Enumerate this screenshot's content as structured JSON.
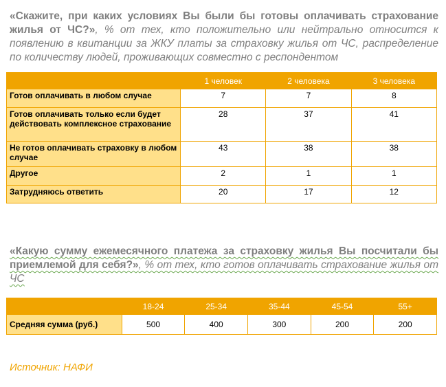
{
  "section1": {
    "question_bold": "«Скажите, при каких условиях Вы были бы готовы оплачивать страхование жилья от ЧС?»",
    "question_italic": ", % от тех, кто положительно или нейтрально относится к появлению в квитанции за ЖКУ платы за страховку жилья от ЧС, распределение по количеству людей, проживающих совместно с респондентом",
    "columns": [
      "1 человек",
      "2 человека",
      "3 человека"
    ],
    "rows": [
      {
        "label": "Готов оплачивать в любом случае",
        "values": [
          "7",
          "7",
          "8"
        ]
      },
      {
        "label": "Готов оплачивать только если будет действовать комплексное страхование",
        "values": [
          "28",
          "37",
          "41"
        ]
      },
      {
        "label": "Не готов оплачивать страховку в любом случае",
        "values": [
          "43",
          "38",
          "38"
        ]
      },
      {
        "label": "Другое",
        "values": [
          "2",
          "1",
          "1"
        ]
      },
      {
        "label": "Затрудняюсь ответить",
        "values": [
          "20",
          "17",
          "12"
        ]
      }
    ]
  },
  "section2": {
    "question_bold": "«Какую сумму ежемесячного платежа за страховку жилья Вы посчитали бы приемлемой для себя?»",
    "question_italic": ", % от тех, кто готов оплачивать страхование жилья от ЧС",
    "columns": [
      "18-24",
      "25-34",
      "35-44",
      "45-54",
      "55+"
    ],
    "row": {
      "label": "Средняя сумма (руб.)",
      "values": [
        "500",
        "400",
        "300",
        "200",
        "200"
      ]
    }
  },
  "source": "Источник: НАФИ"
}
